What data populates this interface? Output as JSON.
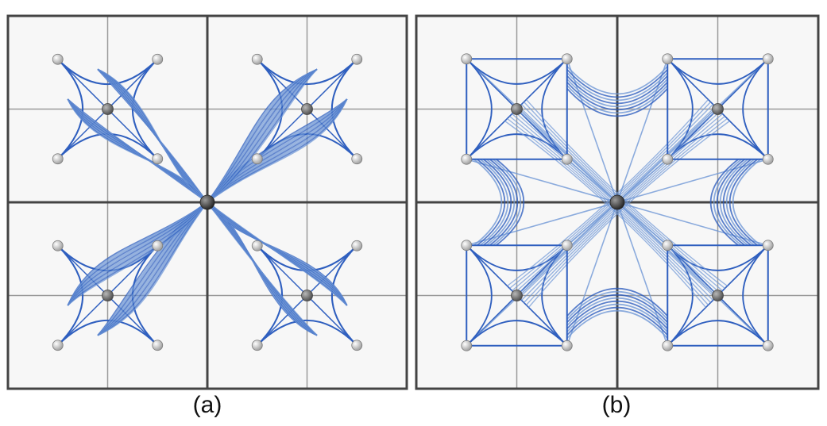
{
  "panels": [
    {
      "id": "a",
      "caption": "(a)"
    },
    {
      "id": "b",
      "caption": "(b)"
    }
  ],
  "colors": {
    "curve": "#2f5fbf",
    "curve_light": "#6f97d6",
    "frame": "#444444",
    "grid": "#9a9a9a",
    "node_white": "#eeeeee",
    "node_gray": "#777777",
    "node_dark": "#555555",
    "background": "#f7f7f7"
  }
}
